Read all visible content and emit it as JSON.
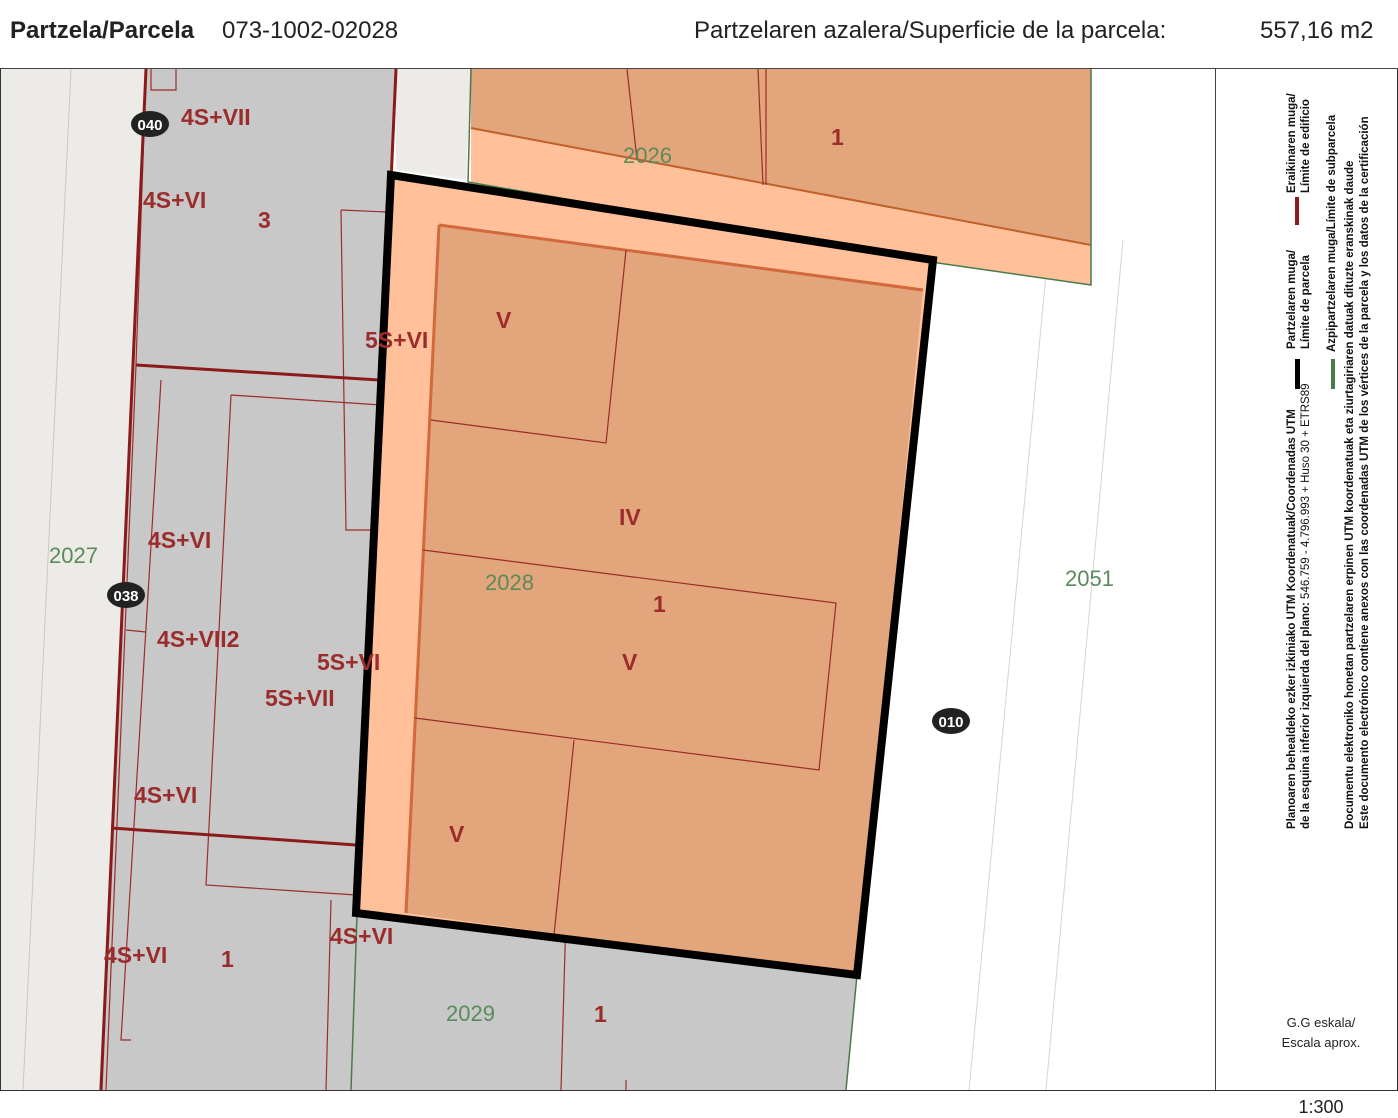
{
  "header": {
    "parcel_label": "Partzela/Parcela",
    "parcel_value": "073-1002-02028",
    "area_label": "Partzelaren azalera/Superficie de la parcela:",
    "area_value": "557,16 m2"
  },
  "map": {
    "parcel_numbers": [
      "2026",
      "2027",
      "2028",
      "2029",
      "2051"
    ],
    "floor_labels": [
      "4S+VII",
      "4S+VI",
      "3",
      "5S+VI",
      "V",
      "IV",
      "1",
      "4S+VI",
      "4S+VII2",
      "5S+VI",
      "5S+VII",
      "V",
      "4S+VI",
      "V",
      "4S+VI",
      "1",
      "4S+VI",
      "1",
      "1"
    ],
    "street_numbers": [
      "040",
      "038",
      "010"
    ]
  },
  "legend": {
    "building_limit": "Eraikinaren muga/",
    "building_limit_es": "Límite de edificio",
    "parcel_limit": "Partzelaren muga/",
    "parcel_limit_es": "Límite de parcela",
    "subparcel_limit": "Azpipartzelaren muga/Límite de subparcela",
    "coords_line1": "Planoaren behealdeko ezker izkiniako UTM Koordenatuak/Coordenadas UTM",
    "coords_line2_label": "de la esquina inferior izquierda del plano:",
    "coords_line2_value": "546.759 - 4.796.993 + Huso 30 + ETRS89",
    "doc_note_eu": "Documentu elektroniko honetan partzelaren erpinen UTM koordenatuak eta ziurtagiriaren datuak dituzte eranskinak daude",
    "doc_note_es": "Este documento electrónico contiene anexos con las coordenadas UTM de los vértices de la parcela y los datos de la certificación",
    "scale_label_eu": "G.G eskala/",
    "scale_label_es": "Escala aprox.",
    "scale_value": "1:300",
    "colors": {
      "building_limit": "#8b1a1a",
      "parcel_limit": "#000000",
      "subparcel_limit": "#4a7a4a",
      "parcel_fill": "#ffc09a",
      "building_fill": "#e3a57c",
      "neighbor_fill": "#c8c8c8",
      "label_red": "#9b2c2c",
      "label_green": "#5b8a5b"
    }
  }
}
